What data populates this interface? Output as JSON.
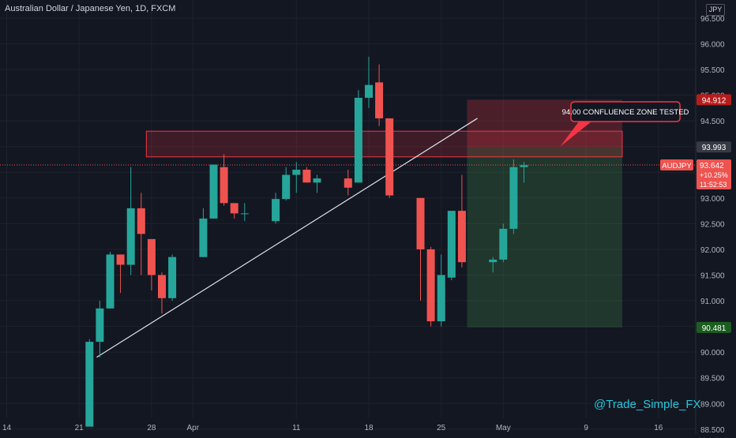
{
  "header": {
    "title": "Australian Dollar / Japanese Yen, 1D, FXCM",
    "currency": "JPY"
  },
  "watermark": "@Trade_Simple_FX",
  "colors": {
    "background": "#131722",
    "up": "#26a69a",
    "down": "#ef5350",
    "grid": "#1e222d",
    "axis_text": "#b2b5be",
    "zone_fill": "#f2364566",
    "zone_stroke": "#f23645",
    "stop_fill": "#7f1d1d",
    "target_fill": "#14532d",
    "callout": "#f23645"
  },
  "chart_data": {
    "type": "candlestick",
    "title": "Australian Dollar / Japanese Yen, 1D, FXCM",
    "symbol": "AUDJPY",
    "y_axis": {
      "range": [
        88.55,
        96.85
      ],
      "ticks": [
        "88.500",
        "89.000",
        "89.500",
        "90.000",
        "90.500",
        "91.000",
        "91.500",
        "92.000",
        "92.500",
        "93.000",
        "93.500",
        "94.000",
        "94.500",
        "95.000",
        "95.500",
        "96.000",
        "96.500"
      ]
    },
    "x_axis": {
      "tick_labels": [
        {
          "label": "14",
          "day": 0
        },
        {
          "label": "21",
          "day": 7
        },
        {
          "label": "28",
          "day": 14
        },
        {
          "label": "Apr",
          "day": 18
        },
        {
          "label": "11",
          "day": 28
        },
        {
          "label": "18",
          "day": 35
        },
        {
          "label": "25",
          "day": 42
        },
        {
          "label": "May",
          "day": 48
        },
        {
          "label": "9",
          "day": 56
        },
        {
          "label": "16",
          "day": 63
        }
      ]
    },
    "candles": [
      {
        "day": 8,
        "open": 88.55,
        "high": 90.25,
        "low": 88.55,
        "close": 90.2
      },
      {
        "day": 9,
        "open": 90.2,
        "high": 91.0,
        "low": 89.9,
        "close": 90.85
      },
      {
        "day": 10,
        "open": 90.85,
        "high": 91.95,
        "low": 90.85,
        "close": 91.9
      },
      {
        "day": 11,
        "open": 91.9,
        "high": 91.85,
        "low": 91.15,
        "close": 91.7
      },
      {
        "day": 12,
        "open": 91.7,
        "high": 93.6,
        "low": 91.5,
        "close": 92.8
      },
      {
        "day": 13,
        "open": 92.8,
        "high": 93.1,
        "low": 91.5,
        "close": 92.3
      },
      {
        "day": 14,
        "open": 92.2,
        "high": 92.2,
        "low": 91.2,
        "close": 91.5
      },
      {
        "day": 15,
        "open": 91.5,
        "high": 91.55,
        "low": 90.75,
        "close": 91.05
      },
      {
        "day": 16,
        "open": 91.05,
        "high": 91.9,
        "low": 91.0,
        "close": 91.85
      },
      {
        "day": 19,
        "open": 91.85,
        "high": 92.8,
        "low": 91.85,
        "close": 92.6
      },
      {
        "day": 20,
        "open": 92.6,
        "high": 93.6,
        "low": 92.6,
        "close": 93.65
      },
      {
        "day": 21,
        "open": 93.6,
        "high": 93.85,
        "low": 92.85,
        "close": 92.9
      },
      {
        "day": 22,
        "open": 92.9,
        "high": 92.9,
        "low": 92.6,
        "close": 92.7
      },
      {
        "day": 23,
        "open": 92.7,
        "high": 92.9,
        "low": 92.55,
        "close": 92.7
      },
      {
        "day": 26,
        "open": 92.55,
        "high": 93.1,
        "low": 92.5,
        "close": 92.98
      },
      {
        "day": 27,
        "open": 92.98,
        "high": 93.6,
        "low": 92.95,
        "close": 93.45
      },
      {
        "day": 28,
        "open": 93.45,
        "high": 93.7,
        "low": 93.1,
        "close": 93.55
      },
      {
        "day": 29,
        "open": 93.55,
        "high": 93.6,
        "low": 93.3,
        "close": 93.3
      },
      {
        "day": 30,
        "open": 93.3,
        "high": 93.45,
        "low": 93.1,
        "close": 93.38
      },
      {
        "day": 33,
        "open": 93.38,
        "high": 93.55,
        "low": 93.05,
        "close": 93.2
      },
      {
        "day": 34,
        "open": 93.3,
        "high": 95.1,
        "low": 93.3,
        "close": 94.95
      },
      {
        "day": 35,
        "open": 94.95,
        "high": 95.75,
        "low": 94.75,
        "close": 95.2
      },
      {
        "day": 36,
        "open": 95.25,
        "high": 95.6,
        "low": 94.4,
        "close": 94.55
      },
      {
        "day": 37,
        "open": 94.55,
        "high": 94.55,
        "low": 93.0,
        "close": 93.05
      },
      {
        "day": 40,
        "open": 93.0,
        "high": 93.0,
        "low": 91.0,
        "close": 92.0
      },
      {
        "day": 41,
        "open": 92.0,
        "high": 92.05,
        "low": 90.5,
        "close": 90.6
      },
      {
        "day": 42,
        "open": 90.6,
        "high": 91.9,
        "low": 90.5,
        "close": 91.5
      },
      {
        "day": 43,
        "open": 91.45,
        "high": 92.75,
        "low": 91.4,
        "close": 92.75
      },
      {
        "day": 44,
        "open": 92.75,
        "high": 93.45,
        "low": 91.65,
        "close": 91.75
      },
      {
        "day": 47,
        "open": 91.75,
        "high": 91.85,
        "low": 91.55,
        "close": 91.8
      },
      {
        "day": 48,
        "open": 91.8,
        "high": 92.5,
        "low": 91.75,
        "close": 92.4
      },
      {
        "day": 49,
        "open": 92.4,
        "high": 93.75,
        "low": 92.3,
        "close": 93.6
      },
      {
        "day": 50,
        "open": 93.6,
        "high": 93.7,
        "low": 93.3,
        "close": 93.64
      }
    ],
    "trendline": {
      "from": {
        "day": 8.7,
        "price": 89.9
      },
      "to": {
        "day": 45.5,
        "price": 94.55
      }
    },
    "resistance_zone": {
      "day_from": 13.5,
      "day_to": 59.5,
      "price_low": 93.8,
      "price_high": 94.3
    },
    "position": {
      "day_from": 44.5,
      "day_to": 59.5,
      "entry": 93.993,
      "stop": 94.912,
      "target": 90.481
    },
    "current_price_line": 93.642,
    "price_labels": [
      {
        "name": "stop-price-label",
        "text": "94.912",
        "price": 94.912,
        "color": "#b71c1c"
      },
      {
        "name": "entry-price-label",
        "text": "93.993",
        "price": 93.993,
        "color": "#363a45"
      },
      {
        "name": "target-price-label",
        "text": "90.481",
        "price": 90.481,
        "color": "#1b5e20"
      }
    ],
    "current_label": {
      "symbol": "AUDJPY",
      "price": "93.642",
      "change": "+10.25%",
      "countdown": "11:52:53"
    },
    "annotation": {
      "text": "94.00 CONFLUENCE ZONE TESTED",
      "anchor_day": 53.5,
      "anchor_price": 94.0
    }
  }
}
